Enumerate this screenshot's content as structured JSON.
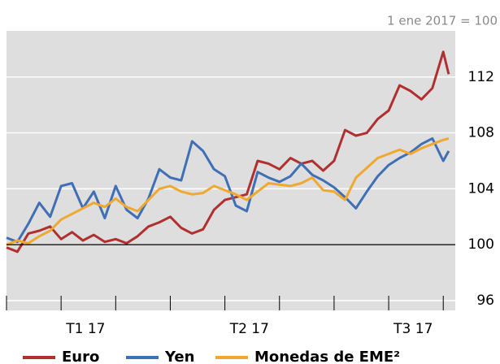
{
  "chart_data": {
    "type": "line",
    "note": "1 ene 2017 = 100",
    "x": [
      0,
      0.2,
      0.4,
      0.6,
      0.8,
      1.0,
      1.2,
      1.4,
      1.6,
      1.8,
      2.0,
      2.2,
      2.4,
      2.6,
      2.8,
      3.0,
      3.2,
      3.4,
      3.6,
      3.8,
      4.0,
      4.2,
      4.4,
      4.6,
      4.8,
      5.0,
      5.2,
      5.4,
      5.6,
      5.8,
      6.0,
      6.2,
      6.4,
      6.6,
      6.8,
      7.0,
      7.2,
      7.4,
      7.6,
      7.8,
      8.0,
      8.1
    ],
    "series": [
      {
        "name": "Euro",
        "color": "#b03030",
        "values": [
          99.8,
          99.5,
          100.8,
          101,
          101.3,
          100.4,
          100.9,
          100.3,
          100.7,
          100.2,
          100.4,
          100.1,
          100.6,
          101.3,
          101.6,
          102,
          101.2,
          100.8,
          101.1,
          102.5,
          103.2,
          103.4,
          103.6,
          106,
          105.8,
          105.4,
          106.2,
          105.8,
          106,
          105.3,
          106,
          108.2,
          107.8,
          108,
          109,
          109.6,
          111.4,
          111,
          110.4,
          111.2,
          113.8,
          112.2
        ]
      },
      {
        "name": "Yen",
        "color": "#3f6fb5",
        "values": [
          100.5,
          100.2,
          101.5,
          103,
          102,
          104.2,
          104.4,
          102.6,
          103.8,
          101.9,
          104.2,
          102.5,
          101.9,
          103.3,
          105.4,
          104.8,
          104.6,
          107.4,
          106.7,
          105.4,
          104.9,
          102.8,
          102.4,
          105.2,
          104.8,
          104.5,
          104.9,
          105.8,
          105,
          104.6,
          104.1,
          103.4,
          102.6,
          103.8,
          104.9,
          105.7,
          106.2,
          106.6,
          107.2,
          107.6,
          106,
          106.7
        ]
      },
      {
        "name": "Monedas de EME²",
        "color": "#f0a830",
        "values": [
          100,
          100.3,
          100.1,
          100.6,
          101,
          101.8,
          102.2,
          102.6,
          103,
          102.7,
          103.3,
          102.7,
          102.4,
          103.2,
          104,
          104.2,
          103.8,
          103.6,
          103.7,
          104.2,
          103.9,
          103.6,
          103.2,
          103.8,
          104.4,
          104.3,
          104.2,
          104.4,
          104.8,
          103.9,
          103.8,
          103.2,
          104.8,
          105.5,
          106.2,
          106.5,
          106.8,
          106.5,
          106.9,
          107.2,
          107.5,
          107.6
        ]
      }
    ],
    "xlim": [
      0,
      8.22
    ],
    "xticks": [
      0,
      1,
      2,
      3,
      4,
      5,
      6,
      7,
      8
    ],
    "xlabels": [
      {
        "value": 1.45,
        "label": "T1 17"
      },
      {
        "value": 4.45,
        "label": "T2 17"
      },
      {
        "value": 7.45,
        "label": "T3 17"
      }
    ],
    "ylim": [
      95.3,
      115.3
    ],
    "yticks": [
      96,
      100,
      104,
      108,
      112
    ],
    "baseline": 100,
    "grid": true,
    "legend": "bottom"
  }
}
